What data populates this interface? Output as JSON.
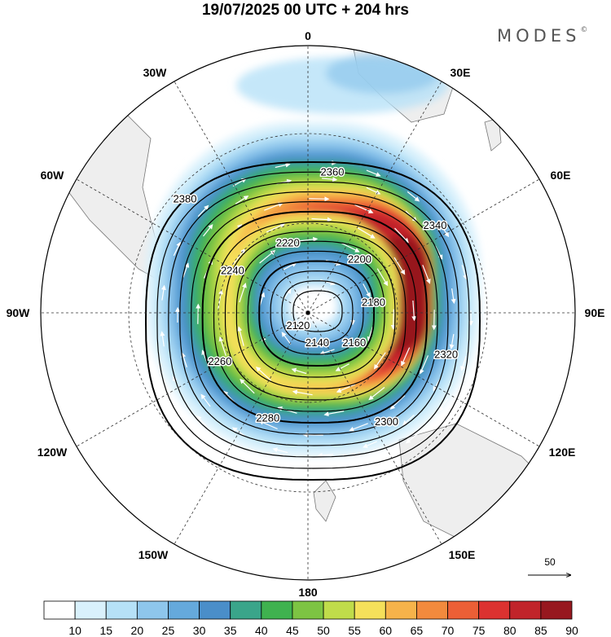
{
  "title": "19/07/2025  00 UTC  + 204 hrs",
  "brand": "MODES",
  "brand_mark": "©",
  "longitude_labels": [
    "0",
    "30E",
    "60E",
    "90E",
    "120E",
    "150E",
    "180",
    "150W",
    "120W",
    "90W",
    "60W",
    "30W"
  ],
  "colorbar": {
    "ticks": [
      "10",
      "15",
      "20",
      "25",
      "30",
      "35",
      "40",
      "45",
      "50",
      "55",
      "60",
      "65",
      "70",
      "75",
      "80",
      "85",
      "90"
    ],
    "colors": [
      "#ffffff",
      "#d9f1fc",
      "#b6e1f7",
      "#8ec6ec",
      "#65a9dc",
      "#4a8ec9",
      "#3aa58a",
      "#3fb24f",
      "#7dc443",
      "#c0dc4a",
      "#f5e05a",
      "#f6b34a",
      "#f28a3d",
      "#ec5f36",
      "#dc3230",
      "#c1242a",
      "#97181f"
    ]
  },
  "wind_reference": {
    "label": "50"
  },
  "contours": [
    {
      "value": "2380",
      "level": 2380
    },
    {
      "value": "2360",
      "level": 2360
    },
    {
      "value": "2340",
      "level": 2340
    },
    {
      "value": "2320",
      "level": 2320
    },
    {
      "value": "2300",
      "level": 2300
    },
    {
      "value": "2280",
      "level": 2280
    },
    {
      "value": "2260",
      "level": 2260
    },
    {
      "value": "2240",
      "level": 2240
    },
    {
      "value": "2220",
      "level": 2220
    },
    {
      "value": "2200",
      "level": 2200
    },
    {
      "value": "2180",
      "level": 2180
    },
    {
      "value": "2160",
      "level": 2160
    },
    {
      "value": "2140",
      "level": 2140
    },
    {
      "value": "2120",
      "level": 2120
    }
  ],
  "map": {
    "projection": "south-polar-stereographic",
    "field": "wind speed shaded",
    "colors": {
      "land": "#eeeeee",
      "coast": "#777777",
      "grid": "#333333",
      "contour": "#000000",
      "vector": "#ffffff"
    }
  }
}
